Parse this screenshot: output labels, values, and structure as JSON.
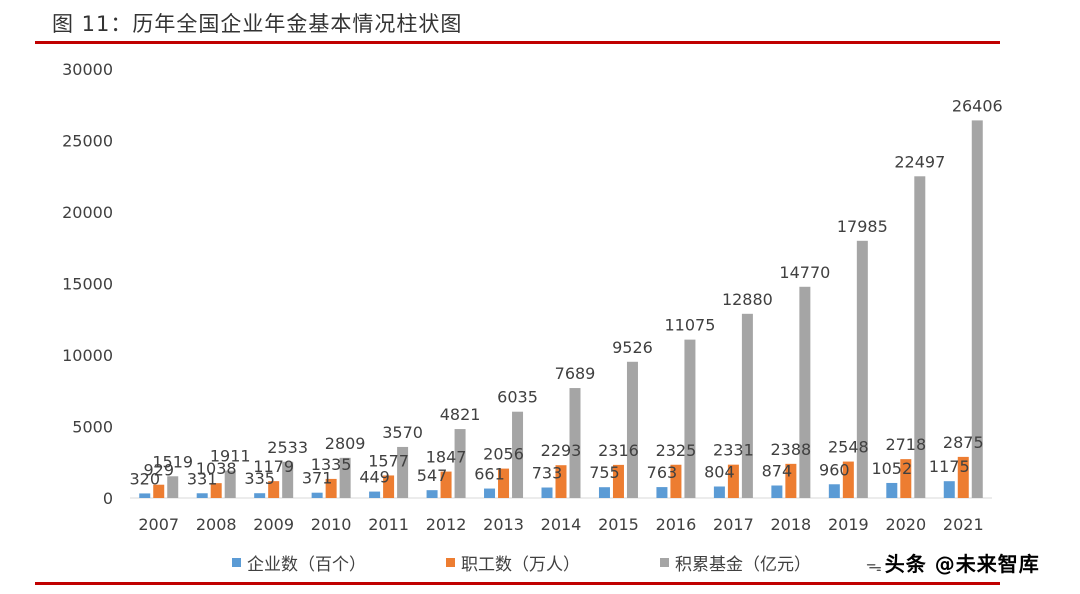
{
  "figure": {
    "title": "图 11：历年全国企业年金基本情况柱状图",
    "rule_color": "#c00000"
  },
  "watermark": {
    "text": "头条 @未来智库"
  },
  "chart_data": {
    "type": "bar",
    "categories": [
      "2007",
      "2008",
      "2009",
      "2010",
      "2011",
      "2012",
      "2013",
      "2014",
      "2015",
      "2016",
      "2017",
      "2018",
      "2019",
      "2020",
      "2021"
    ],
    "series": [
      {
        "name": "企业数（百个）",
        "color": "#5b9bd5",
        "values": [
          320,
          331,
          335,
          371,
          449,
          547,
          661,
          733,
          755,
          763,
          804,
          874,
          960,
          1052,
          1175
        ]
      },
      {
        "name": "职工数（万人）",
        "color": "#ed7d31",
        "values": [
          929,
          1038,
          1179,
          1335,
          1577,
          1847,
          2056,
          2293,
          2316,
          2325,
          2331,
          2388,
          2548,
          2718,
          2875
        ]
      },
      {
        "name": "积累基金（亿元）",
        "color": "#a5a5a5",
        "values": [
          1519,
          1911,
          2533,
          2809,
          3570,
          4821,
          6035,
          7689,
          9526,
          11075,
          12880,
          14770,
          17985,
          22497,
          26406
        ]
      }
    ],
    "yticks": [
      0,
      5000,
      10000,
      15000,
      20000,
      25000,
      30000
    ],
    "ylim": [
      0,
      30000
    ],
    "grid": false,
    "legend_position": "bottom"
  }
}
